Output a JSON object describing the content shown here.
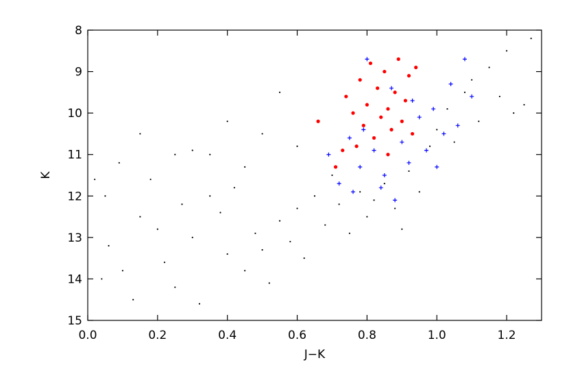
{
  "chart_data": {
    "type": "scatter",
    "title": "",
    "xlabel": "J−K",
    "ylabel": "K",
    "xlim": [
      0.0,
      1.3
    ],
    "ylim": [
      15.0,
      8.0
    ],
    "y_inverted": true,
    "grid": false,
    "legend": "none",
    "xticks": [
      0.0,
      0.2,
      0.4,
      0.6,
      0.8,
      1.0,
      1.2
    ],
    "xtick_labels": [
      "0.0",
      "0.2",
      "0.4",
      "0.6",
      "0.8",
      "1.0",
      "1.2"
    ],
    "yticks": [
      8,
      9,
      10,
      11,
      12,
      13,
      14,
      15
    ],
    "ytick_labels": [
      "8",
      "9",
      "10",
      "11",
      "12",
      "13",
      "14",
      "15"
    ],
    "series": [
      {
        "marker": "dot",
        "color": "#000000",
        "description_hidden": true,
        "points": [
          [
            0.02,
            11.6
          ],
          [
            0.05,
            12.0
          ],
          [
            0.06,
            13.2
          ],
          [
            0.04,
            14.0
          ],
          [
            0.09,
            11.2
          ],
          [
            0.1,
            13.8
          ],
          [
            0.13,
            14.5
          ],
          [
            0.15,
            12.5
          ],
          [
            0.18,
            11.6
          ],
          [
            0.2,
            12.8
          ],
          [
            0.22,
            13.6
          ],
          [
            0.25,
            14.2
          ],
          [
            0.27,
            12.2
          ],
          [
            0.3,
            13.0
          ],
          [
            0.32,
            14.6
          ],
          [
            0.35,
            11.0
          ],
          [
            0.38,
            12.4
          ],
          [
            0.4,
            13.4
          ],
          [
            0.42,
            11.8
          ],
          [
            0.45,
            13.8
          ],
          [
            0.48,
            12.9
          ],
          [
            0.5,
            13.3
          ],
          [
            0.52,
            14.1
          ],
          [
            0.55,
            12.6
          ],
          [
            0.58,
            13.1
          ],
          [
            0.6,
            12.3
          ],
          [
            0.62,
            13.5
          ],
          [
            0.65,
            12.0
          ],
          [
            0.68,
            12.7
          ],
          [
            0.7,
            11.5
          ],
          [
            0.72,
            12.2
          ],
          [
            0.75,
            12.9
          ],
          [
            0.78,
            11.9
          ],
          [
            0.8,
            12.5
          ],
          [
            0.82,
            12.1
          ],
          [
            0.85,
            11.7
          ],
          [
            0.88,
            12.3
          ],
          [
            0.9,
            12.8
          ],
          [
            0.92,
            11.4
          ],
          [
            0.95,
            11.9
          ],
          [
            0.98,
            10.8
          ],
          [
            1.0,
            10.4
          ],
          [
            1.03,
            9.9
          ],
          [
            1.05,
            10.7
          ],
          [
            1.08,
            9.5
          ],
          [
            1.1,
            9.2
          ],
          [
            1.12,
            10.2
          ],
          [
            1.15,
            8.9
          ],
          [
            1.18,
            9.6
          ],
          [
            1.2,
            8.5
          ],
          [
            1.22,
            10.0
          ],
          [
            1.25,
            9.8
          ],
          [
            1.27,
            8.2
          ],
          [
            0.3,
            10.9
          ],
          [
            0.4,
            10.2
          ],
          [
            0.5,
            10.5
          ],
          [
            0.55,
            9.5
          ],
          [
            0.6,
            10.8
          ],
          [
            0.45,
            11.3
          ],
          [
            0.35,
            12.0
          ],
          [
            0.25,
            11.0
          ],
          [
            0.15,
            10.5
          ]
        ]
      },
      {
        "marker": "cross",
        "color": "#0000ff",
        "points": [
          [
            0.69,
            11.0
          ],
          [
            0.72,
            11.7
          ],
          [
            0.75,
            10.6
          ],
          [
            0.78,
            11.3
          ],
          [
            0.8,
            8.7
          ],
          [
            0.82,
            10.9
          ],
          [
            0.85,
            11.5
          ],
          [
            0.87,
            9.4
          ],
          [
            0.9,
            10.7
          ],
          [
            0.92,
            11.2
          ],
          [
            0.95,
            10.1
          ],
          [
            0.97,
            10.9
          ],
          [
            0.99,
            9.9
          ],
          [
            1.02,
            10.5
          ],
          [
            1.04,
            9.3
          ],
          [
            1.06,
            10.3
          ],
          [
            1.08,
            8.7
          ],
          [
            1.1,
            9.6
          ],
          [
            0.88,
            12.1
          ],
          [
            0.84,
            11.8
          ],
          [
            0.76,
            11.9
          ],
          [
            0.93,
            9.7
          ],
          [
            1.0,
            11.3
          ],
          [
            0.79,
            10.4
          ]
        ]
      },
      {
        "marker": "circle",
        "color": "#ff0000",
        "points": [
          [
            0.74,
            9.6
          ],
          [
            0.76,
            10.0
          ],
          [
            0.78,
            9.2
          ],
          [
            0.79,
            10.3
          ],
          [
            0.8,
            9.8
          ],
          [
            0.81,
            8.8
          ],
          [
            0.82,
            10.6
          ],
          [
            0.83,
            9.4
          ],
          [
            0.84,
            10.1
          ],
          [
            0.85,
            9.0
          ],
          [
            0.86,
            9.9
          ],
          [
            0.87,
            10.4
          ],
          [
            0.88,
            9.5
          ],
          [
            0.89,
            8.7
          ],
          [
            0.9,
            10.2
          ],
          [
            0.91,
            9.7
          ],
          [
            0.92,
            9.1
          ],
          [
            0.93,
            10.5
          ],
          [
            0.94,
            8.9
          ],
          [
            0.77,
            10.8
          ],
          [
            0.73,
            10.9
          ],
          [
            0.66,
            10.2
          ],
          [
            0.71,
            11.3
          ],
          [
            0.86,
            11.0
          ]
        ]
      }
    ]
  }
}
